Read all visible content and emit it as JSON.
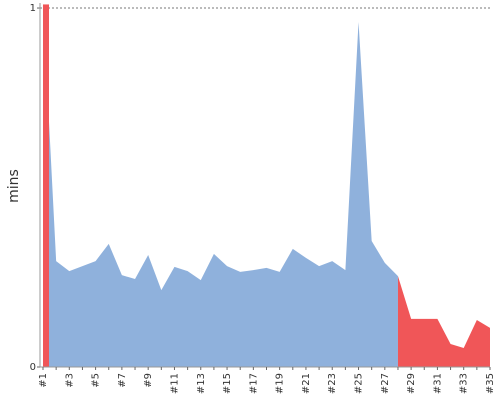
{
  "chart_data": {
    "type": "area",
    "y_label": "mins",
    "categories": [
      "#1",
      null,
      "#3",
      null,
      "#5",
      null,
      "#7",
      null,
      "#9",
      null,
      "#11",
      null,
      "#13",
      null,
      "#15",
      null,
      "#17",
      null,
      "#19",
      null,
      "#21",
      null,
      "#23",
      null,
      "#25",
      null,
      "#27",
      null,
      "#29",
      null,
      "#31",
      null,
      "#33",
      null,
      "#35"
    ],
    "series": [
      {
        "color": "#8fb1dc",
        "values": [
          1.01,
          0.295,
          0.267,
          0.281,
          0.295,
          0.343,
          0.256,
          0.245,
          0.312,
          0.214,
          0.279,
          0.267,
          0.242,
          0.315,
          0.281,
          0.265,
          0.27,
          0.276,
          0.265,
          0.329,
          0.304,
          0.281,
          0.295,
          0.27,
          0.961,
          0.351,
          0.29,
          0.253,
          null,
          null,
          null,
          null,
          null,
          null,
          null
        ]
      },
      {
        "color": "#f05658",
        "values": [
          1.01,
          null,
          null,
          null,
          null,
          null,
          null,
          null,
          null,
          null,
          null,
          null,
          null,
          null,
          null,
          null,
          null,
          null,
          null,
          null,
          null,
          null,
          null,
          null,
          null,
          null,
          null,
          0.253,
          0.134,
          0.134,
          0.134,
          0.064,
          0.053,
          0.131,
          0.109
        ]
      }
    ],
    "ylim": [
      0,
      1.014
    ],
    "yticks": [
      0,
      1
    ],
    "grid": true
  }
}
